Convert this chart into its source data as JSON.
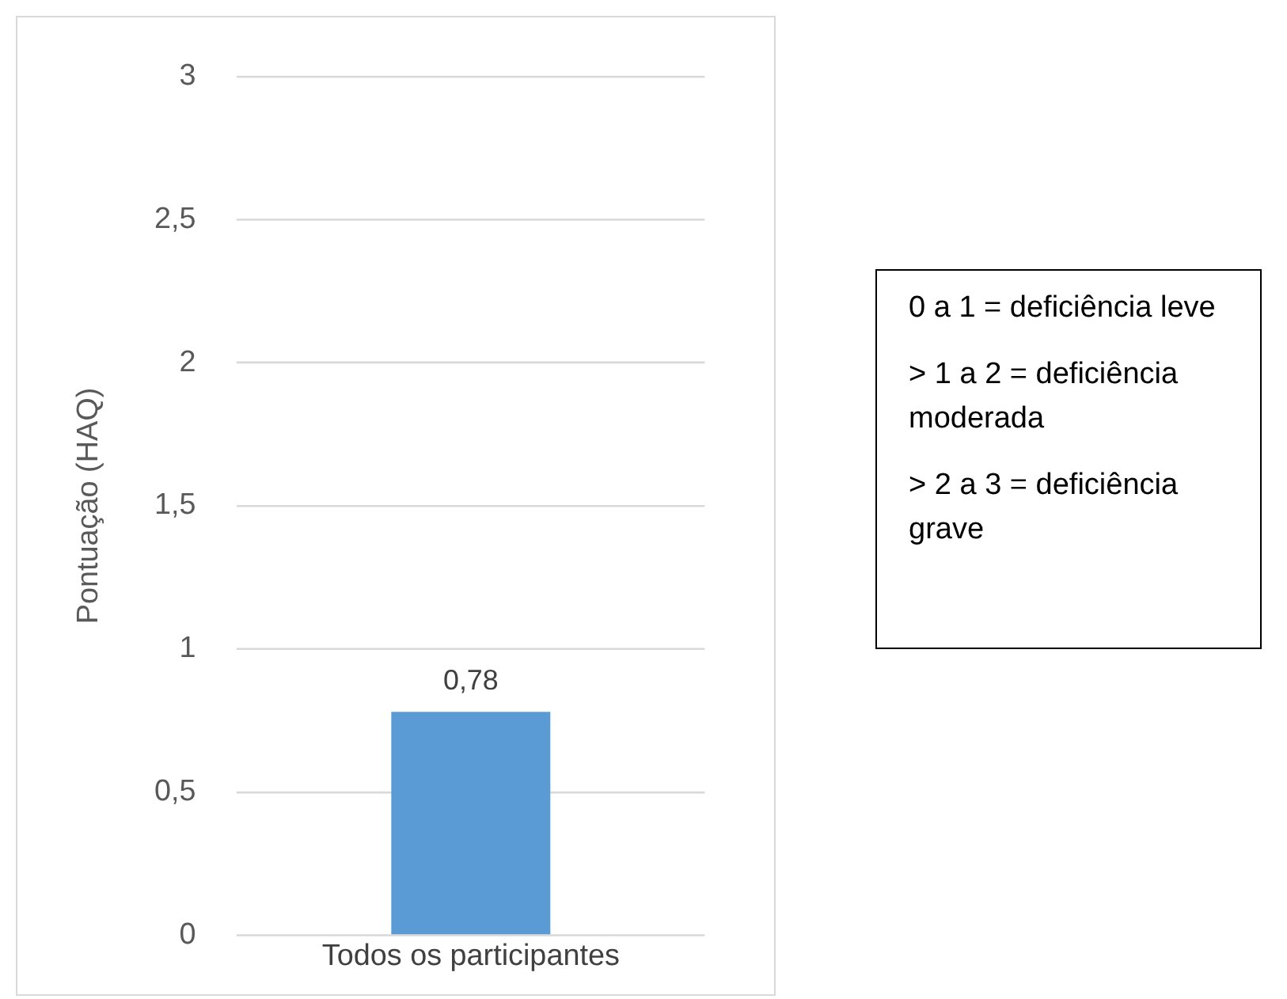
{
  "chart_data": {
    "type": "bar",
    "ylabel": "Pontuação (HAQ)",
    "categories": [
      "Todos os participantes"
    ],
    "values": [
      0.78
    ],
    "value_labels": [
      "0,78"
    ],
    "color": "#5b9bd5",
    "ylim": [
      0,
      3
    ],
    "yticks": [
      0,
      {
        "value": 0.5,
        "label": "0,5"
      },
      1,
      {
        "value": 1.5,
        "label": "1,5"
      },
      2,
      {
        "value": 2.5,
        "label": "2,5"
      },
      3
    ],
    "grid": "y",
    "annotations": [
      "0 a 1 = deficiência leve",
      "> 1 a 2 = deficiência moderada",
      "> 2 a 3 = deficiência grave"
    ]
  }
}
